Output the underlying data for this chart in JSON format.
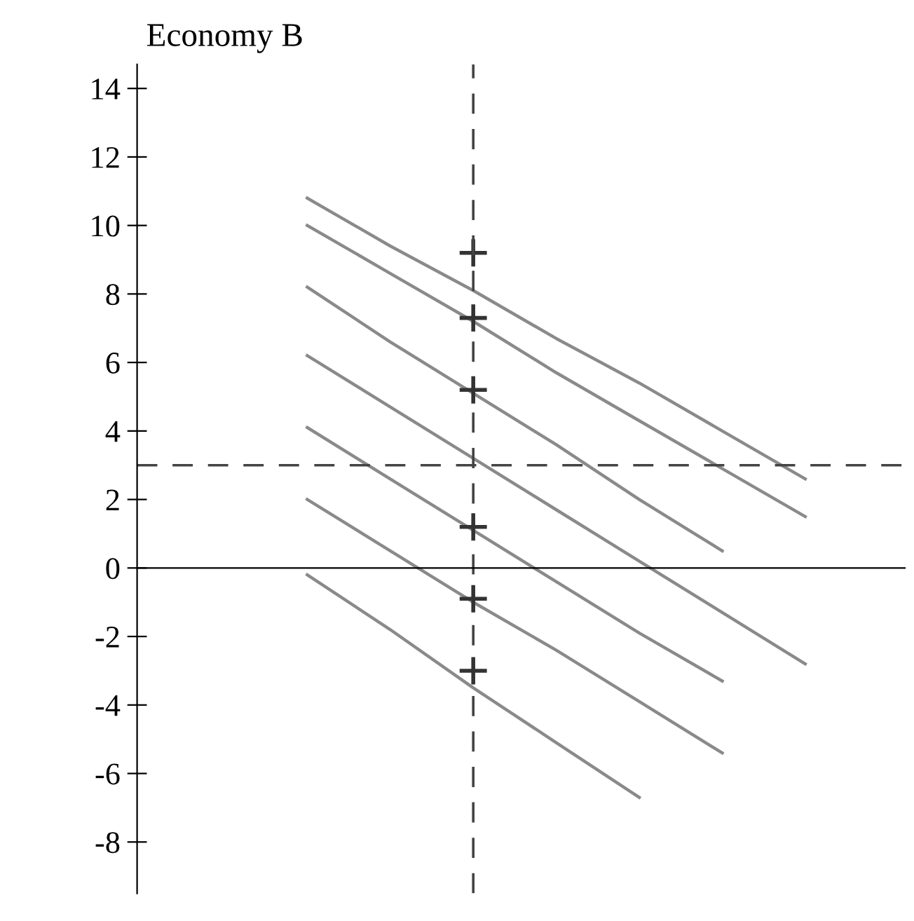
{
  "chart_data": {
    "type": "line",
    "title": "Economy B",
    "categories": [
      null,
      null,
      null,
      null,
      null,
      null,
      null,
      null,
      null,
      null
    ],
    "series": [
      {
        "color": "#8a8a8a",
        "values": [
          null,
          null,
          10.8,
          9.4,
          8.1,
          6.7,
          5.4,
          4.0,
          2.6,
          null
        ]
      },
      {
        "color": "#8a8a8a",
        "values": [
          null,
          null,
          10.0,
          8.6,
          7.2,
          5.7,
          4.3,
          2.9,
          1.5,
          null
        ]
      },
      {
        "color": "#8a8a8a",
        "values": [
          null,
          null,
          8.2,
          6.6,
          5.1,
          3.6,
          2.0,
          0.5,
          null,
          null
        ]
      },
      {
        "color": "#8a8a8a",
        "values": [
          null,
          null,
          6.2,
          4.7,
          3.2,
          1.7,
          0.2,
          -1.3,
          -2.8,
          null
        ]
      },
      {
        "color": "#8a8a8a",
        "values": [
          null,
          null,
          4.1,
          2.6,
          1.1,
          -0.4,
          -1.9,
          -3.3,
          null,
          null
        ]
      },
      {
        "color": "#8a8a8a",
        "values": [
          null,
          null,
          2.0,
          0.5,
          -1.0,
          -2.4,
          -3.9,
          -5.4,
          null,
          null
        ]
      },
      {
        "color": "#8a8a8a",
        "values": [
          null,
          null,
          -0.2,
          -1.8,
          -3.5,
          -5.1,
          -6.7,
          null,
          null,
          null
        ]
      },
      {
        "type": "scatter",
        "marker": "cross",
        "color": "#333333",
        "values": [
          null,
          null,
          null,
          null,
          9.2,
          null,
          null,
          null,
          null,
          null
        ]
      },
      {
        "type": "scatter",
        "marker": "cross",
        "color": "#333333",
        "values": [
          null,
          null,
          null,
          null,
          7.3,
          null,
          null,
          null,
          null,
          null
        ]
      },
      {
        "type": "scatter",
        "marker": "cross",
        "color": "#333333",
        "values": [
          null,
          null,
          null,
          null,
          5.2,
          null,
          null,
          null,
          null,
          null
        ]
      },
      {
        "type": "scatter",
        "marker": "cross",
        "color": "#333333",
        "values": [
          null,
          null,
          null,
          null,
          1.2,
          null,
          null,
          null,
          null,
          null
        ]
      },
      {
        "type": "scatter",
        "marker": "cross",
        "color": "#333333",
        "values": [
          null,
          null,
          null,
          null,
          -0.9,
          null,
          null,
          null,
          null,
          null
        ]
      },
      {
        "type": "scatter",
        "marker": "cross",
        "color": "#333333",
        "values": [
          null,
          null,
          null,
          null,
          -3.0,
          null,
          null,
          null,
          null,
          null
        ]
      }
    ],
    "ylim": [
      -9.5,
      14.7
    ],
    "yticks": [
      -8,
      -6,
      -4,
      -2,
      0,
      2,
      4,
      6,
      8,
      10,
      12,
      14
    ],
    "ref_lines": [
      {
        "axis": "y",
        "value": 3,
        "line_style": "dashed",
        "color": "#444444"
      }
    ],
    "tick_labels": "y",
    "grid": false,
    "legend": false
  }
}
